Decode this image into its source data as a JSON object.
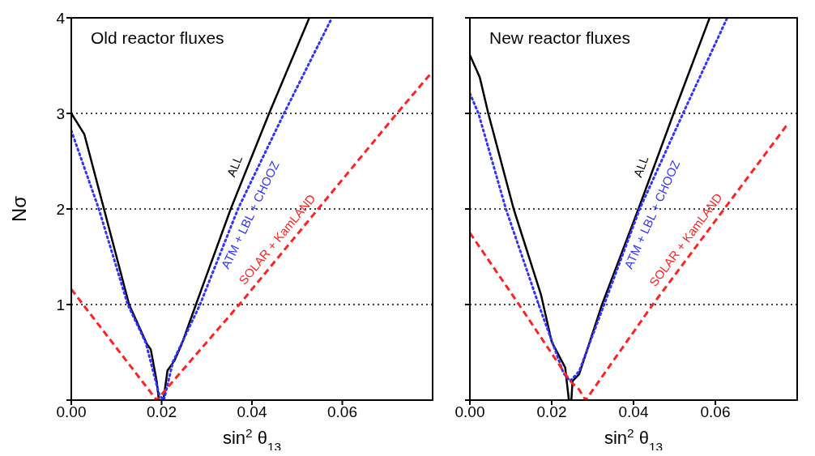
{
  "chart_data": [
    {
      "type": "line",
      "title": "Old reactor fluxes",
      "xlabel": "sin$^{2}$ θ$_{13}$",
      "ylabel": "Nσ",
      "xlim": [
        0,
        0.08
      ],
      "ylim": [
        0,
        4
      ],
      "xticks": [
        {
          "value": 0,
          "label": "0.00"
        },
        {
          "value": 0.02,
          "label": "0.02"
        },
        {
          "value": 0.04,
          "label": "0.04"
        },
        {
          "value": 0.06,
          "label": "0.06"
        }
      ],
      "yticks": [
        {
          "value": 0,
          "label": null
        },
        1,
        2,
        3,
        4
      ],
      "marker": "none",
      "ref_lines": [
        {
          "axis": "y",
          "value": 1,
          "line_style": "dotted",
          "color": "#000000"
        },
        {
          "axis": "y",
          "value": 2,
          "line_style": "dotted",
          "color": "#000000"
        },
        {
          "axis": "y",
          "value": 3,
          "line_style": "dotted",
          "color": "#000000"
        }
      ],
      "series": [
        {
          "name": "ALL",
          "color": "#000000",
          "line_style": "solid",
          "x": [
            0,
            0.0029,
            0.0128,
            0.0167,
            0.0176,
            0.0189,
            0.0194,
            0.0204,
            0.0213,
            0.0228,
            0.0244,
            0.0276,
            0.0353,
            0.0438,
            0.0527
          ],
          "values": [
            3.0,
            2.78,
            1.0,
            0.59,
            0.53,
            0.2,
            0,
            0,
            0.31,
            0.41,
            0.58,
            1.0,
            2.0,
            3.0,
            4.0
          ]
        },
        {
          "name": "ATM + LBL + CHOOZ",
          "color": "#3333ff",
          "line_style": "dotted",
          "x": [
            0,
            0.0061,
            0.0125,
            0.0165,
            0.0195,
            0.0205,
            0.0225,
            0.0285,
            0.0369,
            0.0471,
            0.0577
          ],
          "values": [
            2.82,
            2.0,
            1.0,
            0.6,
            0.05,
            0,
            0.4,
            1.0,
            2.0,
            3.0,
            4.0
          ]
        },
        {
          "name": "SOLAR + KamLAND",
          "color": "#ff2222",
          "line_style": "dashed",
          "x": [
            0,
            0.0189,
            0.0372,
            0.0721,
            0.08
          ],
          "values": [
            1.16,
            0,
            1.0,
            3.0,
            3.44
          ]
        }
      ]
    },
    {
      "type": "line",
      "title": "New reactor fluxes",
      "xlabel": "sin$^{2}$ θ$_{13}$",
      "xlim": [
        0,
        0.08
      ],
      "ylim": [
        0,
        4
      ],
      "xticks": [
        {
          "value": 0,
          "label": "0.00"
        },
        {
          "value": 0.02,
          "label": "0.02"
        },
        {
          "value": 0.04,
          "label": "0.04"
        },
        {
          "value": 0.06,
          "label": "0.06"
        }
      ],
      "yticks": [
        0,
        1,
        2,
        3,
        4
      ],
      "tick_labels": "x",
      "marker": "none",
      "ref_lines": [
        {
          "axis": "y",
          "value": 1,
          "line_style": "dotted",
          "color": "#000000"
        },
        {
          "axis": "y",
          "value": 2,
          "line_style": "dotted",
          "color": "#000000"
        },
        {
          "axis": "y",
          "value": 3,
          "line_style": "dotted",
          "color": "#000000"
        }
      ],
      "series": [
        {
          "name": "ALL",
          "color": "#000000",
          "line_style": "solid",
          "x": [
            0,
            0.0024,
            0.0045,
            0.0107,
            0.0174,
            0.02,
            0.0233,
            0.0242,
            0.0248,
            0.0251,
            0.0267,
            0.0323,
            0.0412,
            0.0498,
            0.0586
          ],
          "values": [
            3.61,
            3.38,
            3.0,
            2.0,
            1.1,
            0.61,
            0.34,
            0,
            0,
            0.2,
            0.27,
            1.0,
            2.0,
            3.0,
            4.0
          ]
        },
        {
          "name": "ATM + LBL + CHOOZ",
          "color": "#3333ff",
          "line_style": "dotted",
          "x": [
            0,
            0.0021,
            0.0088,
            0.0168,
            0.0229,
            0.0245,
            0.0267,
            0.0328,
            0.0415,
            0.0521,
            0.0629
          ],
          "values": [
            3.21,
            3.0,
            2.0,
            1.0,
            0.28,
            0.2,
            0.3,
            1.0,
            2.0,
            3.0,
            4.0
          ]
        },
        {
          "name": "SOLAR + KamLAND",
          "color": "#ff2222",
          "line_style": "dashed",
          "x": [
            0,
            0.012,
            0.0245,
            0.0267,
            0.0283,
            0.0447,
            0.0777
          ],
          "values": [
            1.75,
            1.0,
            0.2,
            0.11,
            0,
            1.0,
            2.89
          ]
        }
      ]
    }
  ]
}
